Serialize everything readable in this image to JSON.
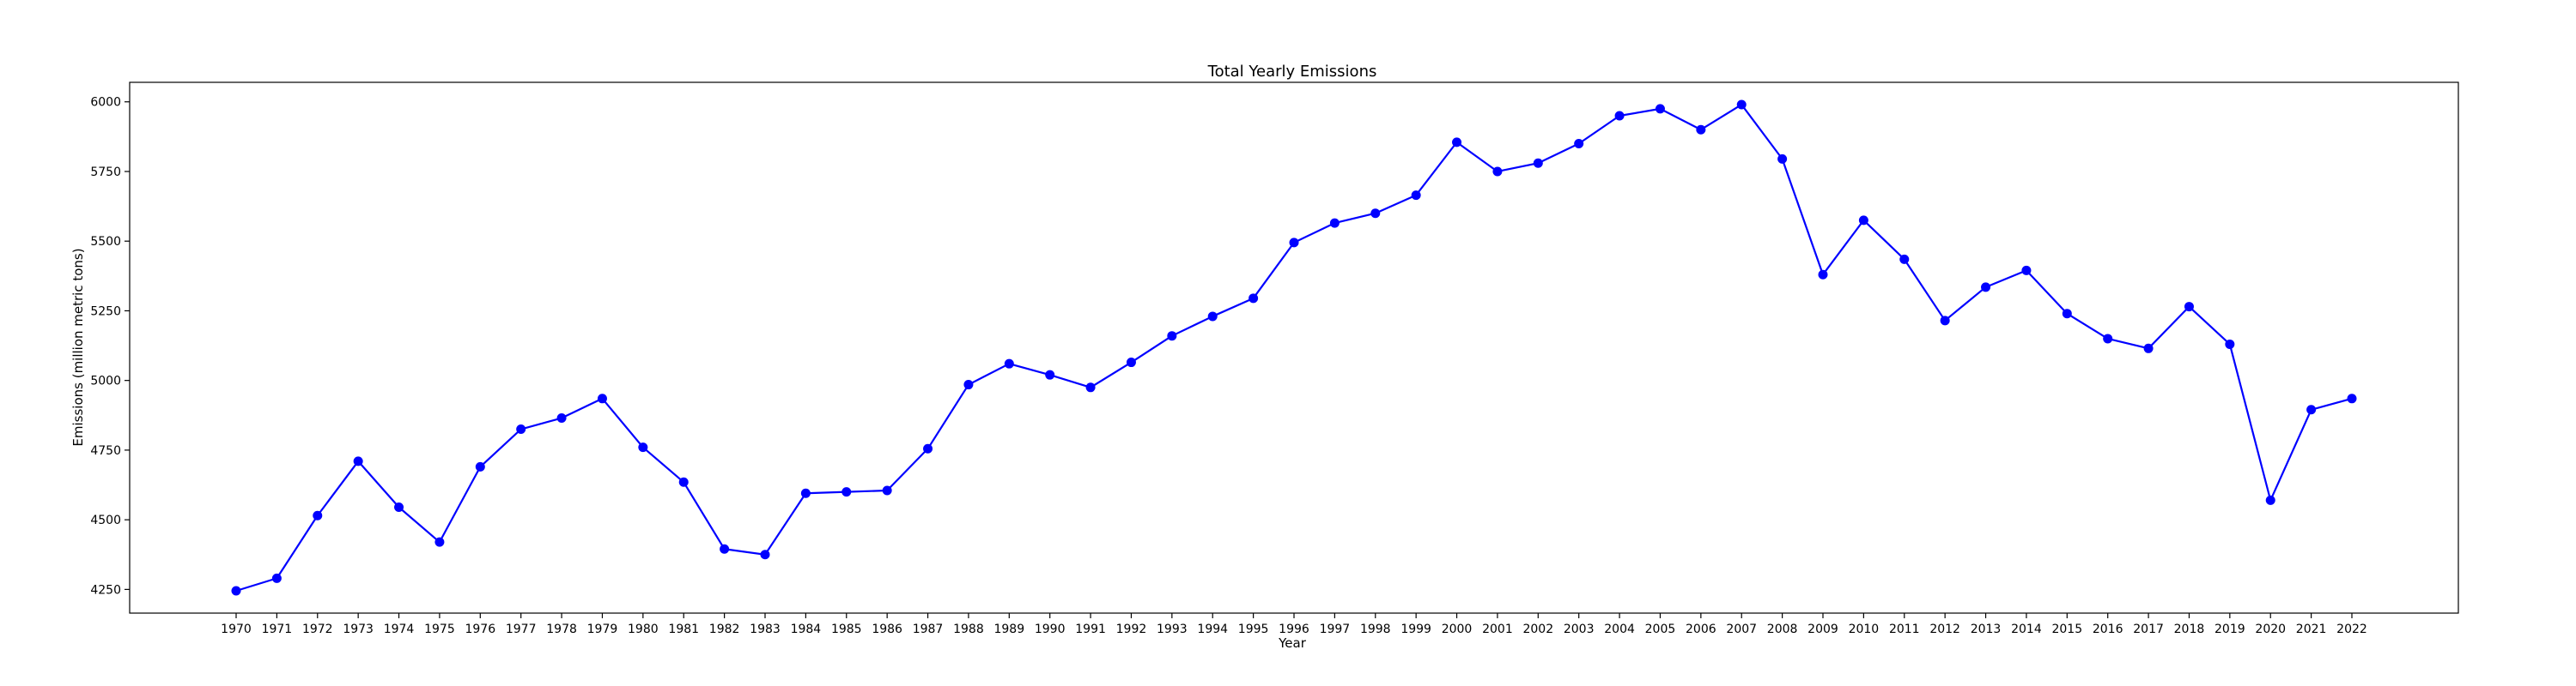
{
  "chart_data": {
    "type": "line",
    "title": "Total Yearly Emissions",
    "xlabel": "Year",
    "ylabel": "Emissions (million metric tons)",
    "x": [
      1970,
      1971,
      1972,
      1973,
      1974,
      1975,
      1976,
      1977,
      1978,
      1979,
      1980,
      1981,
      1982,
      1983,
      1984,
      1985,
      1986,
      1987,
      1988,
      1989,
      1990,
      1991,
      1992,
      1993,
      1994,
      1995,
      1996,
      1997,
      1998,
      1999,
      2000,
      2001,
      2002,
      2003,
      2004,
      2005,
      2006,
      2007,
      2008,
      2009,
      2010,
      2011,
      2012,
      2013,
      2014,
      2015,
      2016,
      2017,
      2018,
      2019,
      2020,
      2021,
      2022
    ],
    "series": [
      {
        "color": "#0000ff",
        "marker": "circle",
        "values": [
          4245,
          4290,
          4515,
          4710,
          4545,
          4420,
          4690,
          4825,
          4865,
          4935,
          4760,
          4635,
          4395,
          4375,
          4595,
          4600,
          4605,
          4755,
          4985,
          5060,
          5020,
          4975,
          5065,
          5160,
          5230,
          5295,
          5495,
          5565,
          5600,
          5665,
          5855,
          5750,
          5780,
          5850,
          5950,
          5975,
          5900,
          5990,
          5795,
          5380,
          5575,
          5435,
          5215,
          5335,
          5395,
          5240,
          5150,
          5115,
          5265,
          5130,
          4570,
          4895,
          4935
        ]
      }
    ],
    "yticks": [
      4250,
      4500,
      4750,
      5000,
      5250,
      5500,
      5750,
      6000
    ],
    "ylim": [
      4165,
      6070
    ],
    "grid": false,
    "legend": "none"
  }
}
